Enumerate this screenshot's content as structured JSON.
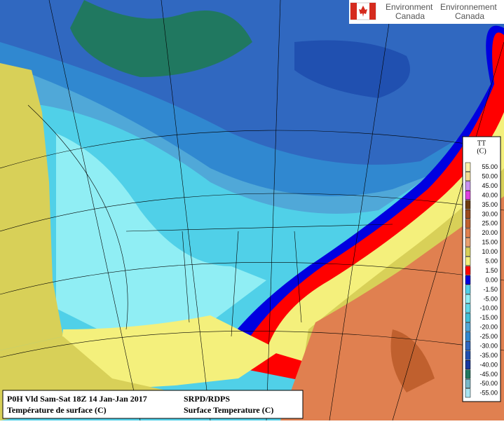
{
  "header": {
    "agency_en": "Environment",
    "country_en": "Canada",
    "agency_fr": "Environnement",
    "country_fr": "Canada"
  },
  "legend": {
    "title": "TT",
    "unit": "(C)",
    "items": [
      {
        "label": "55.00",
        "color": "#f8f0a8"
      },
      {
        "label": "50.00",
        "color": "#f0dc90"
      },
      {
        "label": "45.00",
        "color": "#c890f0"
      },
      {
        "label": "40.00",
        "color": "#e040e0"
      },
      {
        "label": "35.00",
        "color": "#6c3c10"
      },
      {
        "label": "30.00",
        "color": "#9a4a1e"
      },
      {
        "label": "25.00",
        "color": "#c0602e"
      },
      {
        "label": "20.00",
        "color": "#e08050"
      },
      {
        "label": "15.00",
        "color": "#e8a070"
      },
      {
        "label": "10.00",
        "color": "#d8d058"
      },
      {
        "label": "5.00",
        "color": "#f4f07c"
      },
      {
        "label": "1.50",
        "color": "#ff0000"
      },
      {
        "label": "0.00",
        "color": "#0000e0"
      },
      {
        "label": "-1.50",
        "color": "#50d0e8"
      },
      {
        "label": "-5.00",
        "color": "#90eef4"
      },
      {
        "label": "-10.00",
        "color": "#60d8e8"
      },
      {
        "label": "-15.00",
        "color": "#40c0d8"
      },
      {
        "label": "-20.00",
        "color": "#50a8d8"
      },
      {
        "label": "-25.00",
        "color": "#3088d0"
      },
      {
        "label": "-30.00",
        "color": "#3068c0"
      },
      {
        "label": "-35.00",
        "color": "#2050b0"
      },
      {
        "label": "-40.00",
        "color": "#1838a0"
      },
      {
        "label": "-45.00",
        "color": "#207860"
      },
      {
        "label": "-50.00",
        "color": "#78b8c8"
      },
      {
        "label": "-55.00",
        "color": "#a8e4f0"
      }
    ]
  },
  "footer": {
    "run": "P0H Vld Sam-Sat 18Z 14 Jan-Jan 2017",
    "field_fr": "Température de surface (C)",
    "model": "SRPD/RDPS",
    "field_en": "Surface Temperature (C)"
  }
}
